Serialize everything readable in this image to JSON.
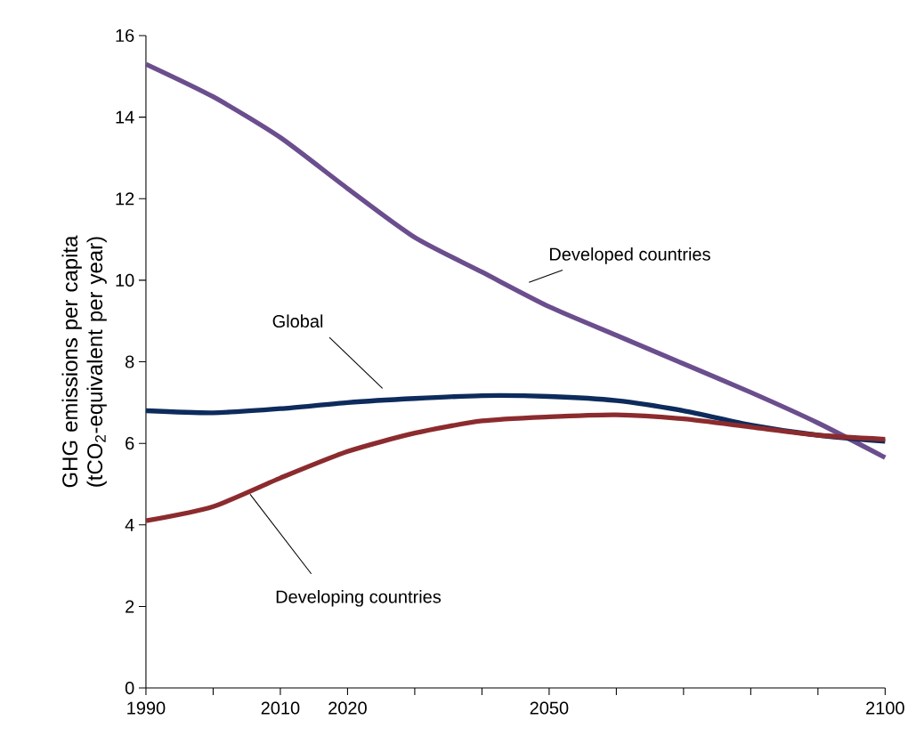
{
  "chart_data": {
    "type": "line",
    "ylabel": "GHG emissions per capita (tCO$_{2}$-equivalent per year)",
    "x": [
      1990,
      2000,
      2010,
      2020,
      2030,
      2040,
      2050,
      2060,
      2070,
      2080,
      2090,
      2100
    ],
    "series": [
      {
        "name": "Developed countries",
        "color": "#6b4e8e",
        "values": [
          15.3,
          14.5,
          13.5,
          12.25,
          11.05,
          10.2,
          9.35,
          8.65,
          7.95,
          7.25,
          6.5,
          5.65
        ]
      },
      {
        "name": "Global",
        "color": "#0d2b5c",
        "values": [
          6.8,
          6.75,
          6.85,
          7.0,
          7.1,
          7.17,
          7.15,
          7.05,
          6.8,
          6.45,
          6.2,
          6.05
        ]
      },
      {
        "name": "Developing countries",
        "color": "#8c2b2e",
        "values": [
          4.1,
          4.45,
          5.15,
          5.8,
          6.25,
          6.55,
          6.65,
          6.7,
          6.6,
          6.4,
          6.2,
          6.1
        ]
      }
    ],
    "xlim": [
      1990,
      2100
    ],
    "ylim": [
      0,
      16
    ],
    "xticks": [
      1990,
      {
        "value": 2000,
        "label": null
      },
      2010,
      2020,
      {
        "value": 2030,
        "label": null
      },
      {
        "value": 2040,
        "label": null
      },
      2050,
      {
        "value": 2060,
        "label": null
      },
      {
        "value": 2070,
        "label": null
      },
      {
        "value": 2080,
        "label": null
      },
      {
        "value": 2090,
        "label": null
      },
      2100
    ],
    "yticks": [
      0,
      2,
      4,
      6,
      8,
      10,
      12,
      14,
      16
    ],
    "grid": false,
    "legend": false,
    "marker": "none",
    "line_style": "solid"
  }
}
